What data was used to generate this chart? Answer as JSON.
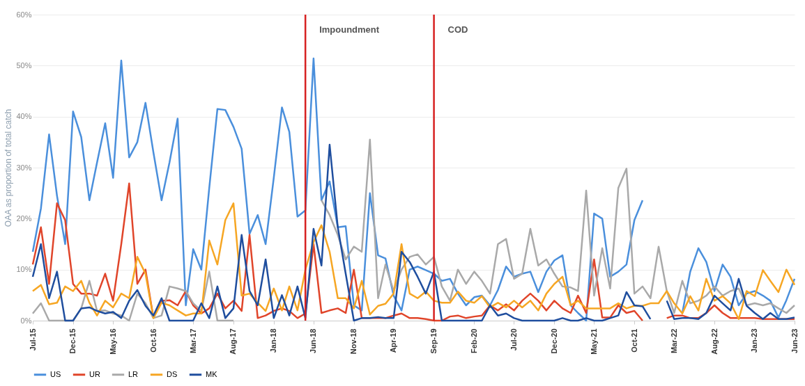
{
  "chart_data": {
    "type": "line",
    "ylabel": "OAA as proportion of total catch",
    "x": [
      "2015-07",
      "2015-08",
      "2015-09",
      "2015-10",
      "2015-11",
      "2015-12",
      "2016-01",
      "2016-02",
      "2016-03",
      "2016-04",
      "2016-05",
      "2016-06",
      "2016-07",
      "2016-08",
      "2016-09",
      "2016-10",
      "2016-11",
      "2016-12",
      "2017-01",
      "2017-02",
      "2017-03",
      "2017-04",
      "2017-05",
      "2017-06",
      "2017-07",
      "2017-08",
      "2017-09",
      "2017-10",
      "2017-11",
      "2017-12",
      "2018-01",
      "2018-02",
      "2018-03",
      "2018-04",
      "2018-05",
      "2018-06",
      "2018-07",
      "2018-08",
      "2018-09",
      "2018-10",
      "2018-11",
      "2018-12",
      "2019-01",
      "2019-02",
      "2019-03",
      "2019-04",
      "2019-05",
      "2019-06",
      "2019-07",
      "2019-08",
      "2019-09",
      "2019-10",
      "2019-11",
      "2019-12",
      "2020-01",
      "2020-02",
      "2020-03",
      "2020-04",
      "2020-05",
      "2020-06",
      "2020-07",
      "2020-08",
      "2020-09",
      "2020-10",
      "2020-11",
      "2020-12",
      "2021-01",
      "2021-02",
      "2021-03",
      "2021-04",
      "2021-05",
      "2021-06",
      "2021-07",
      "2021-08",
      "2021-09",
      "2021-10",
      "2021-11",
      "2021-12",
      "2022-01",
      "2022-02",
      "2022-03",
      "2022-04",
      "2022-05",
      "2022-06",
      "2022-07",
      "2022-08",
      "2022-09",
      "2022-10",
      "2022-11",
      "2022-12",
      "2023-01",
      "2023-02",
      "2023-03",
      "2023-04",
      "2023-05",
      "2023-06"
    ],
    "series": [
      {
        "name": "US",
        "color": "#4a8fdc",
        "values": [
          13.5,
          22,
          36.5,
          24.5,
          15,
          41,
          36,
          23.6,
          31,
          38.7,
          28,
          51,
          32,
          35,
          42.7,
          33,
          23.6,
          31,
          39.6,
          3,
          14,
          10,
          26,
          41.5,
          41.3,
          38,
          33.7,
          17,
          20.7,
          15,
          28,
          41.8,
          37,
          20.4,
          21.6,
          51.4,
          23.6,
          27.3,
          18.3,
          18.5,
          3,
          2,
          25,
          12.8,
          12.2,
          4.9,
          2,
          10,
          10.6,
          9.9,
          9.2,
          7.8,
          8.2,
          5.3,
          3,
          4.6,
          4.9,
          3,
          6,
          10.6,
          8.6,
          9.2,
          9.6,
          5.6,
          9.6,
          11.8,
          12.8,
          3,
          1.5,
          0,
          21,
          20,
          8.6,
          9.6,
          11,
          19.7,
          23.6,
          null,
          null,
          null,
          null,
          1.5,
          9.6,
          14.2,
          11.5,
          5.8,
          11,
          8.6,
          3,
          5.3,
          5.8,
          4.9,
          3.9,
          0.6,
          4,
          8.2
        ]
      },
      {
        "name": "UR",
        "color": "#e0452a",
        "values": [
          11,
          18.3,
          7.2,
          23,
          19.7,
          7.2,
          5.3,
          5.3,
          4.9,
          9.2,
          3.9,
          15,
          26.9,
          7.2,
          10,
          0.6,
          3.9,
          4,
          3,
          5.8,
          3,
          1.4,
          2.4,
          5.3,
          2.4,
          3.9,
          1.9,
          16.8,
          0.5,
          1,
          1.9,
          2.4,
          1.9,
          0.5,
          1.4,
          15,
          1.5,
          2,
          2.4,
          1.5,
          10,
          0.5,
          0.5,
          0.5,
          0.5,
          1,
          1.4,
          0.5,
          0.5,
          0.3,
          0,
          0,
          0.8,
          1,
          0.5,
          0.8,
          1,
          3,
          2,
          3.2,
          2,
          3.9,
          5.3,
          3.9,
          2,
          3.9,
          2.4,
          1.5,
          4.9,
          1.5,
          12,
          0.6,
          0.6,
          3,
          1.5,
          1.9,
          0,
          null,
          null,
          0.5,
          1,
          1,
          0.5,
          0.5,
          1.5,
          3,
          1.5,
          0.5,
          0.5,
          0.5,
          0.5,
          0.3,
          0.3,
          0.3,
          0.3,
          0.3
        ]
      },
      {
        "name": "LR",
        "color": "#a9a9a9",
        "values": [
          1.4,
          3.4,
          0,
          0,
          0,
          0,
          2.4,
          7.8,
          1.9,
          2,
          1.4,
          1,
          0,
          5.3,
          3.4,
          0.5,
          1,
          6.7,
          6.3,
          5.8,
          3.4,
          1.9,
          9.6,
          0,
          0,
          0,
          null,
          null,
          null,
          null,
          null,
          null,
          null,
          null,
          null,
          null,
          23.6,
          20.7,
          16.8,
          12,
          14.5,
          13.5,
          35.5,
          4.4,
          11,
          5.8,
          10,
          12.5,
          13,
          11,
          12.5,
          6.7,
          3.9,
          10,
          7.2,
          9.6,
          7.8,
          5.3,
          15,
          16,
          8.2,
          9.2,
          18,
          10.8,
          12,
          9.2,
          6.7,
          6.5,
          5.8,
          25.5,
          4.9,
          14.2,
          6.3,
          26,
          29.8,
          5.3,
          6.7,
          4.4,
          14.5,
          5.8,
          1.5,
          7.8,
          3.4,
          3.9,
          4.9,
          6.7,
          4.9,
          5.8,
          6.3,
          3,
          3.4,
          3,
          3.4,
          2.4,
          1.5,
          3
        ]
      },
      {
        "name": "DS",
        "color": "#f6a623",
        "values": [
          5.8,
          7,
          3.2,
          3.5,
          6.7,
          5.8,
          7.8,
          3.5,
          1,
          3.9,
          2.6,
          5.3,
          4.4,
          12.5,
          9.2,
          0.5,
          3.5,
          3,
          2,
          1,
          1.4,
          1.4,
          15.7,
          11,
          19.7,
          23,
          4.9,
          5.3,
          3.5,
          1.9,
          6.3,
          2,
          6.7,
          2,
          10,
          15.4,
          18.7,
          13.5,
          4.4,
          4.4,
          2.4,
          7.8,
          1.2,
          2.9,
          3.3,
          5.3,
          15,
          5.3,
          4.4,
          5.7,
          3.9,
          3.5,
          3.5,
          5.7,
          3.9,
          3.5,
          4.8,
          2.6,
          3.5,
          2.6,
          3.9,
          2.6,
          3.9,
          2,
          5.3,
          7.2,
          8.6,
          3,
          3.9,
          2.4,
          2.4,
          2.4,
          2.4,
          3.4,
          2.4,
          2.9,
          2.9,
          3.4,
          3.4,
          5.8,
          3.4,
          1.4,
          4.8,
          2,
          8.2,
          3.9,
          4.8,
          3.4,
          0.3,
          5.8,
          4.8,
          9.9,
          7.8,
          5.6,
          10,
          7
        ]
      },
      {
        "name": "MK",
        "color": "#1f4e9e",
        "values": [
          8.6,
          15,
          4.4,
          9.6,
          0,
          0,
          2.4,
          2.6,
          1.9,
          1.4,
          1.7,
          0.5,
          3.9,
          6,
          2.9,
          1,
          4.4,
          0,
          0,
          0,
          0,
          3.4,
          0.5,
          6.7,
          0.5,
          2.4,
          16.8,
          5.8,
          3,
          12,
          0.5,
          5,
          1,
          6.7,
          0.5,
          18,
          10.8,
          34.5,
          18.3,
          9.2,
          0,
          0.5,
          0.5,
          0.7,
          0.5,
          0.5,
          13.5,
          11.5,
          8.6,
          5.3,
          9.6,
          0,
          0,
          0,
          0,
          0,
          0,
          3,
          1,
          1.4,
          0.5,
          0,
          0,
          0,
          0,
          0,
          0.5,
          0,
          0,
          0.5,
          0,
          0,
          0.5,
          1,
          5.6,
          3,
          2.8,
          0.3,
          null,
          3.9,
          0.3,
          0.5,
          0.5,
          0.3,
          1.5,
          4.9,
          3.4,
          2,
          8.2,
          2.9,
          1.5,
          0.3,
          1.5,
          0.3,
          0.3,
          0.6
        ]
      }
    ],
    "xlim": [
      "2015-07",
      "2023-06"
    ],
    "xticks": [
      {
        "value": "2015-07",
        "label": "Jul-15"
      },
      {
        "value": "2015-12",
        "label": "Dec-15"
      },
      {
        "value": "2016-05",
        "label": "May-16"
      },
      {
        "value": "2016-10",
        "label": "Oct-16"
      },
      {
        "value": "2017-03",
        "label": "Mar-17"
      },
      {
        "value": "2017-08",
        "label": "Aug-17"
      },
      {
        "value": "2018-01",
        "label": "Jan-18"
      },
      {
        "value": "2018-06",
        "label": "Jun-18"
      },
      {
        "value": "2018-11",
        "label": "Nov-18"
      },
      {
        "value": "2019-04",
        "label": "Apr-19"
      },
      {
        "value": "2019-09",
        "label": "Sep-19"
      },
      {
        "value": "2020-02",
        "label": "Feb-20"
      },
      {
        "value": "2020-07",
        "label": "Jul-20"
      },
      {
        "value": "2020-12",
        "label": "Dec-20"
      },
      {
        "value": "2021-05",
        "label": "May-21"
      },
      {
        "value": "2021-10",
        "label": "Oct-21"
      },
      {
        "value": "2022-03",
        "label": "Mar-22"
      },
      {
        "value": "2022-08",
        "label": "Aug-22"
      },
      {
        "value": "2023-01",
        "label": "Jan-23"
      },
      {
        "value": "2023-06",
        "label": "Jun-23"
      }
    ],
    "ylim": [
      0,
      60
    ],
    "yticks": [
      {
        "value": 0,
        "label": "0%"
      },
      {
        "value": 10,
        "label": "10%"
      },
      {
        "value": 20,
        "label": "20%"
      },
      {
        "value": 30,
        "label": "30%"
      },
      {
        "value": 40,
        "label": "40%"
      },
      {
        "value": 50,
        "label": "50%"
      },
      {
        "value": 60,
        "label": "60%"
      }
    ],
    "ref_lines": [
      {
        "axis": "x",
        "value": "2018-05",
        "label": "Impoundment",
        "color": "#d62020"
      },
      {
        "axis": "x",
        "value": "2019-09",
        "label": "COD",
        "color": "#d62020"
      }
    ],
    "grid": "y",
    "legend": "bottom",
    "line_style": "solid",
    "marker": "none"
  }
}
